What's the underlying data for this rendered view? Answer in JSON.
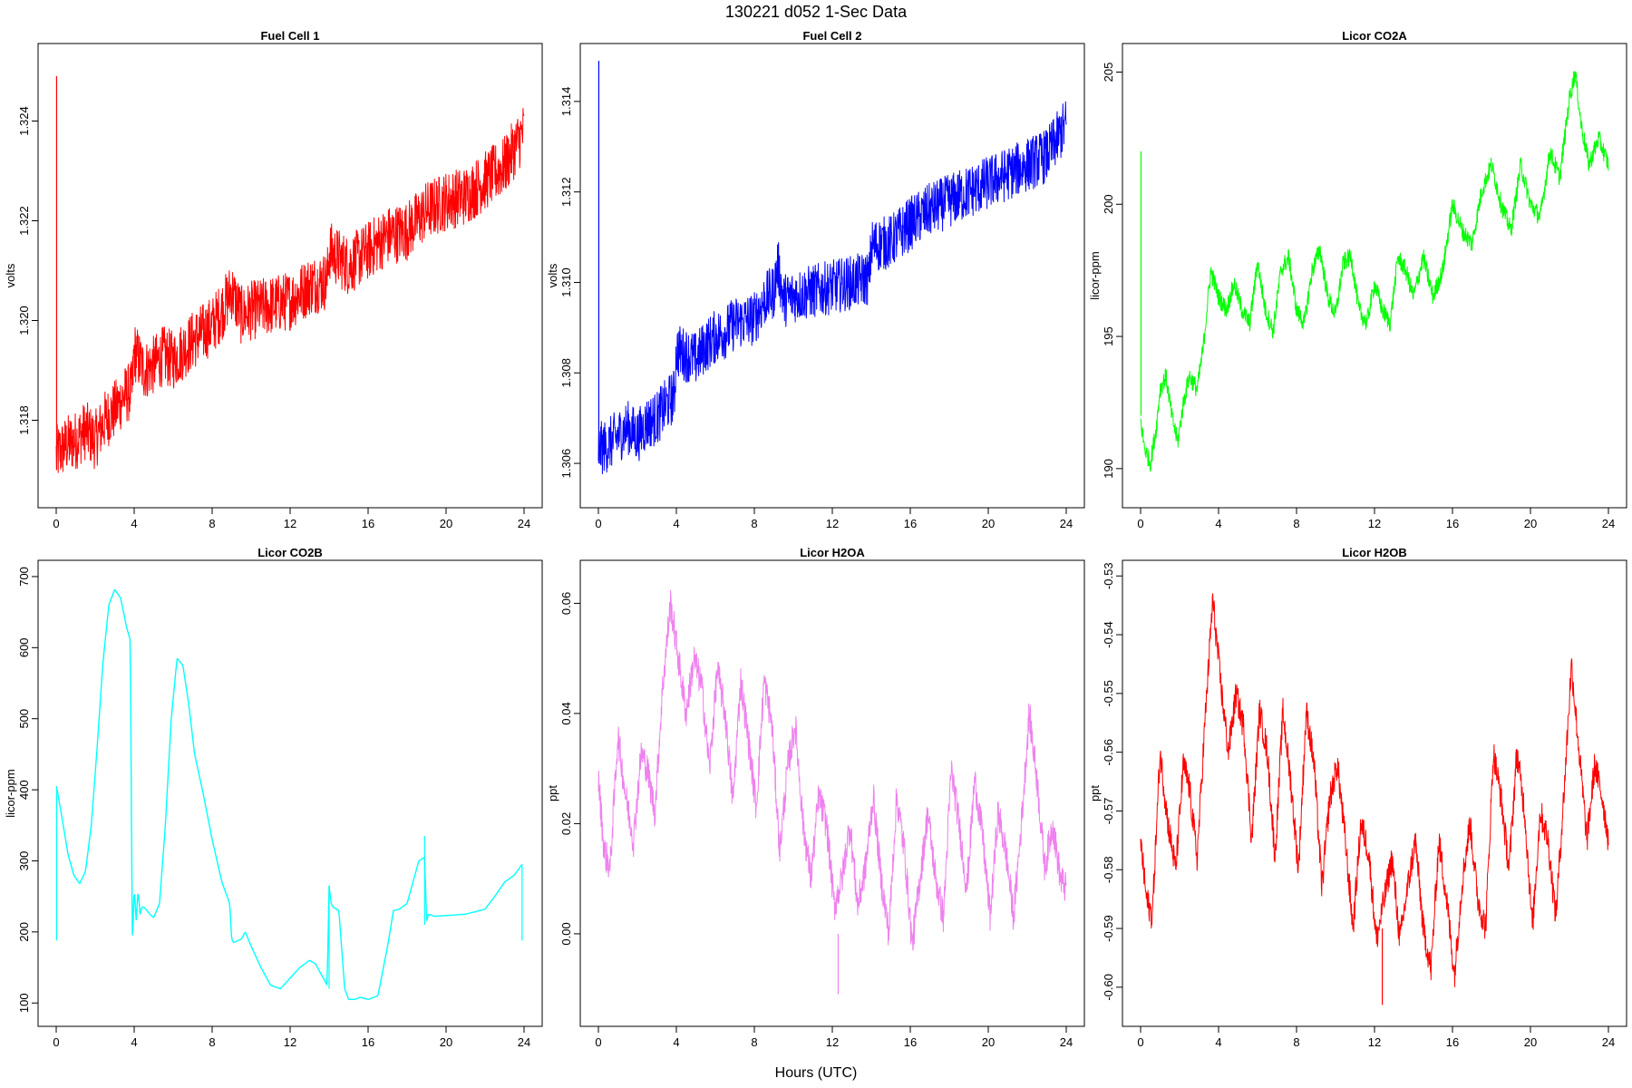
{
  "figure": {
    "title": "130221    d052    1-Sec Data",
    "xlabel": "Hours (UTC)"
  },
  "chart_data": [
    {
      "type": "line",
      "title": "Fuel Cell 1",
      "ylabel": "volts",
      "color": "#ff0000",
      "xlim": [
        0,
        24
      ],
      "ylim": [
        1.3165,
        1.3253
      ],
      "xticks": [
        0,
        4,
        8,
        12,
        16,
        20,
        24
      ],
      "yticks": [
        1.318,
        1.32,
        1.322,
        1.324
      ],
      "yticklabels": [
        "1.318",
        "1.320",
        "1.322",
        "1.324"
      ],
      "spikes": [
        {
          "x": 0.02,
          "y0": 1.317,
          "y1": 1.3249
        }
      ],
      "noise": 0.0006,
      "series": [
        {
          "x": [
            0,
            0.5,
            1,
            1.5,
            2,
            2.5,
            3,
            3.5,
            3.9,
            4.0,
            4.5,
            5,
            5.5,
            6,
            6.5,
            7,
            8,
            8.5,
            9,
            9.5,
            10,
            11,
            12,
            13,
            13.9,
            14.0,
            15,
            16,
            17,
            18,
            19,
            20,
            21,
            22,
            23,
            24
          ],
          "y": [
            1.3173,
            1.3175,
            1.3176,
            1.3178,
            1.3176,
            1.318,
            1.3182,
            1.3185,
            1.3186,
            1.3194,
            1.319,
            1.3191,
            1.3193,
            1.3192,
            1.3194,
            1.3196,
            1.3199,
            1.3202,
            1.3206,
            1.3201,
            1.3202,
            1.3203,
            1.3204,
            1.3207,
            1.3208,
            1.3214,
            1.3211,
            1.3214,
            1.3217,
            1.3218,
            1.3222,
            1.3224,
            1.3225,
            1.3228,
            1.3231,
            1.3238
          ]
        }
      ]
    },
    {
      "type": "line",
      "title": "Fuel Cell 2",
      "ylabel": "volts",
      "color": "#0000ff",
      "xlim": [
        0,
        24
      ],
      "ylim": [
        1.3053,
        1.315
      ],
      "xticks": [
        0,
        4,
        8,
        12,
        16,
        20,
        24
      ],
      "yticks": [
        1.306,
        1.308,
        1.31,
        1.312,
        1.314
      ],
      "yticklabels": [
        "1.306",
        "1.308",
        "1.310",
        "1.312",
        "1.314"
      ],
      "spikes": [
        {
          "x": 0.02,
          "y0": 1.306,
          "y1": 1.3149
        }
      ],
      "noise": 0.0006,
      "series": [
        {
          "x": [
            0,
            0.5,
            1,
            1.5,
            2,
            2.5,
            3,
            3.5,
            3.9,
            4.0,
            4.5,
            5,
            5.5,
            6,
            6.5,
            7,
            8,
            8.5,
            9,
            9.2,
            9.5,
            10,
            11,
            12,
            13,
            13.9,
            14.0,
            15,
            16,
            17,
            18,
            19,
            20,
            21,
            22,
            23,
            24
          ],
          "y": [
            1.3063,
            1.3064,
            1.3066,
            1.3068,
            1.3066,
            1.3069,
            1.307,
            1.3073,
            1.3075,
            1.3085,
            1.3084,
            1.3083,
            1.3086,
            1.3088,
            1.3089,
            1.3091,
            1.3092,
            1.3096,
            1.3098,
            1.3104,
            1.3096,
            1.3097,
            1.3098,
            1.3099,
            1.31,
            1.3101,
            1.3108,
            1.3109,
            1.3113,
            1.3116,
            1.3118,
            1.312,
            1.3122,
            1.3124,
            1.3126,
            1.3128,
            1.3135
          ]
        }
      ]
    },
    {
      "type": "line",
      "title": "Licor CO2A",
      "ylabel": "licor-ppm",
      "color": "#00ff00",
      "xlim": [
        0,
        24
      ],
      "ylim": [
        189.0,
        205.6
      ],
      "xticks": [
        0,
        4,
        8,
        12,
        16,
        20,
        24
      ],
      "yticks": [
        190,
        195,
        200,
        205
      ],
      "yticklabels": [
        "190",
        "195",
        "200",
        "205"
      ],
      "spikes": [
        {
          "x": 0.02,
          "y0": 192.0,
          "y1": 202.0
        }
      ],
      "noise": 0.35,
      "series": [
        {
          "x": [
            0,
            0.2,
            0.5,
            0.8,
            1.0,
            1.3,
            1.6,
            1.9,
            2.2,
            2.5,
            2.9,
            3.2,
            3.6,
            4.0,
            4.4,
            4.8,
            5.2,
            5.6,
            6.0,
            6.4,
            6.8,
            7.2,
            7.6,
            8.0,
            8.4,
            8.8,
            9.2,
            9.6,
            10.0,
            10.4,
            10.8,
            11.2,
            11.6,
            12.0,
            12.4,
            12.8,
            13.2,
            13.6,
            14.0,
            14.5,
            15.0,
            15.5,
            16.0,
            16.5,
            17.0,
            17.5,
            18.0,
            18.5,
            19.0,
            19.5,
            20.0,
            20.5,
            21.0,
            21.5,
            22.0,
            22.3,
            22.6,
            23.0,
            23.5,
            24.0
          ],
          "y": [
            191.8,
            190.8,
            190.2,
            191.5,
            193.0,
            193.5,
            192.0,
            191.0,
            192.5,
            193.5,
            193.0,
            194.5,
            197.5,
            196.5,
            196.0,
            197.0,
            196.0,
            195.5,
            197.8,
            196.0,
            195.2,
            197.5,
            198.0,
            196.0,
            195.5,
            197.5,
            198.3,
            196.5,
            195.8,
            197.8,
            198.0,
            196.0,
            195.5,
            197.0,
            196.0,
            195.5,
            198.0,
            197.5,
            196.5,
            198.0,
            196.5,
            197.5,
            200.0,
            199.0,
            198.5,
            200.5,
            201.5,
            200.0,
            199.0,
            201.5,
            200.0,
            199.5,
            202.0,
            201.0,
            204.0,
            205.0,
            203.0,
            201.5,
            202.5,
            201.5
          ]
        }
      ]
    },
    {
      "type": "line",
      "title": "Licor CO2B",
      "ylabel": "licor-ppm",
      "color": "#00ffff",
      "xlim": [
        0,
        24
      ],
      "ylim": [
        85,
        705
      ],
      "xticks": [
        0,
        4,
        8,
        12,
        16,
        20,
        24
      ],
      "yticks": [
        100,
        200,
        300,
        400,
        500,
        600,
        700
      ],
      "yticklabels": [
        "100",
        "200",
        "300",
        "400",
        "500",
        "600",
        "700"
      ],
      "spikes": [
        {
          "x": 0.02,
          "y0": 188,
          "y1": 405
        },
        {
          "x": 14.0,
          "y0": 120,
          "y1": 265
        },
        {
          "x": 18.9,
          "y0": 210,
          "y1": 335
        },
        {
          "x": 23.9,
          "y0": 188,
          "y1": 295
        }
      ],
      "noise": 0,
      "series": [
        {
          "x": [
            0.05,
            0.3,
            0.6,
            0.9,
            1.2,
            1.5,
            1.8,
            2.1,
            2.4,
            2.7,
            3.0,
            3.3,
            3.6,
            3.8,
            3.9,
            3.92,
            4.0,
            4.1,
            4.2,
            4.3,
            4.4,
            4.5,
            4.8,
            5.0,
            5.3,
            5.6,
            5.9,
            6.2,
            6.5,
            6.8,
            7.1,
            7.5,
            8.0,
            8.5,
            8.9,
            9.0,
            9.1,
            9.5,
            9.7,
            10.0,
            10.5,
            11.0,
            11.5,
            12.0,
            12.5,
            13.0,
            13.3,
            13.6,
            13.9,
            14.0,
            14.1,
            14.2,
            14.5,
            14.8,
            15.0,
            15.3,
            15.6,
            16.0,
            16.5,
            17.0,
            17.3,
            17.6,
            18.0,
            18.3,
            18.6,
            18.9,
            19.0,
            19.1,
            19.4,
            20.0,
            21.0,
            22.0,
            22.5,
            23.0,
            23.5,
            23.9
          ],
          "y": [
            400,
            360,
            310,
            280,
            268,
            285,
            350,
            460,
            580,
            660,
            682,
            670,
            630,
            610,
            200,
            185,
            265,
            215,
            260,
            225,
            235,
            235,
            225,
            220,
            240,
            350,
            500,
            585,
            575,
            520,
            450,
            400,
            330,
            270,
            240,
            190,
            185,
            190,
            200,
            180,
            150,
            125,
            120,
            135,
            150,
            160,
            155,
            140,
            125,
            265,
            240,
            235,
            230,
            120,
            105,
            105,
            108,
            105,
            110,
            180,
            230,
            232,
            240,
            270,
            300,
            305,
            215,
            225,
            222,
            223,
            225,
            232,
            250,
            270,
            280,
            295
          ]
        }
      ]
    },
    {
      "type": "line",
      "title": "Licor H2OA",
      "ylabel": "ppt",
      "color": "#ee82ee",
      "xlim": [
        0,
        24
      ],
      "ylim": [
        -0.0145,
        0.0655
      ],
      "xticks": [
        0,
        4,
        8,
        12,
        16,
        20,
        24
      ],
      "yticks": [
        0.0,
        0.02,
        0.04,
        0.06
      ],
      "yticklabels": [
        "0.00",
        "0.02",
        "0.04",
        "0.06"
      ],
      "spikes": [
        {
          "x": 12.3,
          "y0": 0.0,
          "y1": -0.011
        }
      ],
      "noise": 0.003,
      "series": [
        {
          "x": [
            0,
            0.3,
            0.6,
            1.0,
            1.4,
            1.8,
            2.2,
            2.5,
            2.9,
            3.3,
            3.7,
            4.1,
            4.5,
            4.9,
            5.3,
            5.7,
            6.1,
            6.5,
            6.9,
            7.3,
            7.7,
            8.1,
            8.5,
            8.9,
            9.3,
            9.7,
            10.1,
            10.5,
            10.9,
            11.3,
            11.7,
            12.1,
            12.5,
            12.9,
            13.3,
            13.7,
            14.1,
            14.5,
            14.9,
            15.3,
            15.7,
            16.1,
            16.5,
            16.9,
            17.3,
            17.7,
            18.1,
            18.5,
            18.9,
            19.3,
            19.7,
            20.1,
            20.5,
            20.9,
            21.3,
            21.7,
            22.1,
            22.5,
            22.9,
            23.3,
            23.7,
            24.0
          ],
          "y": [
            0.028,
            0.015,
            0.012,
            0.036,
            0.025,
            0.017,
            0.033,
            0.03,
            0.022,
            0.045,
            0.06,
            0.05,
            0.04,
            0.05,
            0.045,
            0.03,
            0.048,
            0.04,
            0.024,
            0.046,
            0.035,
            0.023,
            0.046,
            0.038,
            0.015,
            0.03,
            0.038,
            0.02,
            0.01,
            0.025,
            0.02,
            0.005,
            0.01,
            0.02,
            0.005,
            0.012,
            0.025,
            0.01,
            0.0,
            0.025,
            0.015,
            -0.002,
            0.01,
            0.022,
            0.01,
            0.003,
            0.03,
            0.02,
            0.008,
            0.028,
            0.018,
            0.003,
            0.022,
            0.015,
            0.003,
            0.02,
            0.04,
            0.028,
            0.012,
            0.02,
            0.01,
            0.008
          ]
        }
      ]
    },
    {
      "type": "line",
      "title": "Licor H2OB",
      "ylabel": "ppt",
      "color": "#ff0000",
      "xlim": [
        0,
        24
      ],
      "ylim": [
        -0.6045,
        -0.5295
      ],
      "xticks": [
        0,
        4,
        8,
        12,
        16,
        20,
        24
      ],
      "yticks": [
        -0.6,
        -0.59,
        -0.58,
        -0.57,
        -0.56,
        -0.55,
        -0.54,
        -0.53
      ],
      "yticklabels": [
        "-0.60",
        "-0.59",
        "-0.58",
        "-0.57",
        "-0.56",
        "-0.55",
        "-0.54",
        "-0.53"
      ],
      "spikes": [
        {
          "x": 12.4,
          "y0": -0.59,
          "y1": -0.603
        }
      ],
      "noise": 0.0025,
      "series": [
        {
          "x": [
            0,
            0.3,
            0.6,
            1.0,
            1.4,
            1.8,
            2.2,
            2.5,
            2.9,
            3.3,
            3.7,
            4.1,
            4.5,
            4.9,
            5.3,
            5.7,
            6.1,
            6.5,
            6.9,
            7.3,
            7.7,
            8.1,
            8.5,
            8.9,
            9.3,
            9.7,
            10.1,
            10.5,
            10.9,
            11.3,
            11.7,
            12.1,
            12.5,
            12.9,
            13.3,
            13.7,
            14.1,
            14.5,
            14.9,
            15.3,
            15.7,
            16.1,
            16.5,
            16.9,
            17.3,
            17.7,
            18.1,
            18.5,
            18.9,
            19.3,
            19.7,
            20.1,
            20.5,
            20.9,
            21.3,
            21.7,
            22.1,
            22.5,
            22.9,
            23.3,
            23.7,
            24.0
          ],
          "y": [
            -0.575,
            -0.585,
            -0.588,
            -0.56,
            -0.572,
            -0.58,
            -0.562,
            -0.566,
            -0.578,
            -0.555,
            -0.534,
            -0.548,
            -0.56,
            -0.55,
            -0.556,
            -0.575,
            -0.553,
            -0.56,
            -0.578,
            -0.553,
            -0.565,
            -0.58,
            -0.553,
            -0.562,
            -0.583,
            -0.568,
            -0.562,
            -0.575,
            -0.59,
            -0.572,
            -0.577,
            -0.592,
            -0.585,
            -0.578,
            -0.592,
            -0.583,
            -0.575,
            -0.59,
            -0.597,
            -0.575,
            -0.585,
            -0.598,
            -0.582,
            -0.572,
            -0.585,
            -0.59,
            -0.56,
            -0.568,
            -0.58,
            -0.56,
            -0.57,
            -0.59,
            -0.57,
            -0.575,
            -0.588,
            -0.568,
            -0.545,
            -0.56,
            -0.575,
            -0.562,
            -0.568,
            -0.575
          ]
        }
      ]
    }
  ]
}
